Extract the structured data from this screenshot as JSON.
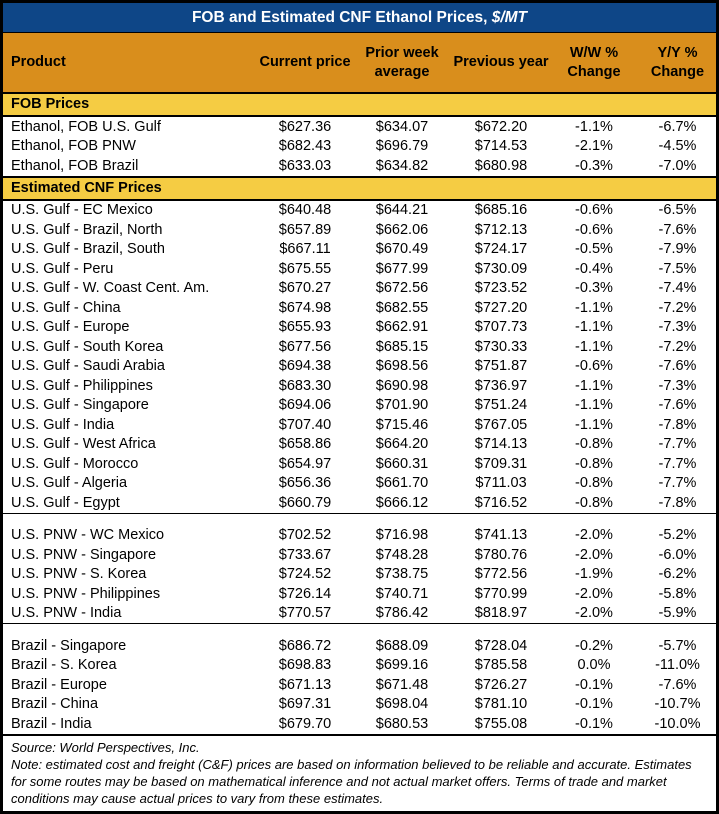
{
  "title": {
    "main": "FOB and Estimated CNF Ethanol Prices, ",
    "unit": "$/MT"
  },
  "columns": [
    "Product",
    "Current price",
    "Prior week average",
    "Previous year",
    "W/W % Change",
    "Y/Y % Change"
  ],
  "colors": {
    "title_bg": "#0E4687",
    "title_text": "#FFFFFF",
    "header_bg": "#D98E1C",
    "section_band_bg": "#F5CC43",
    "border": "#000000",
    "body_text": "#000000"
  },
  "sections": [
    {
      "type": "band",
      "label": "FOB Prices"
    },
    {
      "type": "rows",
      "name": "fob-prices",
      "rows": [
        [
          "Ethanol, FOB U.S. Gulf",
          "$627.36",
          "$634.07",
          "$672.20",
          "-1.1%",
          "-6.7%"
        ],
        [
          "Ethanol, FOB PNW",
          "$682.43",
          "$696.79",
          "$714.53",
          "-2.1%",
          "-4.5%"
        ],
        [
          "Ethanol, FOB Brazil",
          "$633.03",
          "$634.82",
          "$680.98",
          "-0.3%",
          "-7.0%"
        ]
      ]
    },
    {
      "type": "band",
      "label": "Estimated CNF Prices"
    },
    {
      "type": "rows",
      "name": "cnf-us-gulf",
      "rows": [
        [
          "U.S. Gulf - EC Mexico",
          "$640.48",
          "$644.21",
          "$685.16",
          "-0.6%",
          "-6.5%"
        ],
        [
          "U.S. Gulf - Brazil, North",
          "$657.89",
          "$662.06",
          "$712.13",
          "-0.6%",
          "-7.6%"
        ],
        [
          "U.S. Gulf - Brazil, South",
          "$667.11",
          "$670.49",
          "$724.17",
          "-0.5%",
          "-7.9%"
        ],
        [
          "U.S. Gulf - Peru",
          "$675.55",
          "$677.99",
          "$730.09",
          "-0.4%",
          "-7.5%"
        ],
        [
          "U.S. Gulf - W. Coast Cent. Am.",
          "$670.27",
          "$672.56",
          "$723.52",
          "-0.3%",
          "-7.4%"
        ],
        [
          "U.S. Gulf - China",
          "$674.98",
          "$682.55",
          "$727.20",
          "-1.1%",
          "-7.2%"
        ],
        [
          "U.S. Gulf - Europe",
          "$655.93",
          "$662.91",
          "$707.73",
          "-1.1%",
          "-7.3%"
        ],
        [
          "U.S. Gulf - South Korea",
          "$677.56",
          "$685.15",
          "$730.33",
          "-1.1%",
          "-7.2%"
        ],
        [
          "U.S. Gulf - Saudi Arabia",
          "$694.38",
          "$698.56",
          "$751.87",
          "-0.6%",
          "-7.6%"
        ],
        [
          "U.S. Gulf - Philippines",
          "$683.30",
          "$690.98",
          "$736.97",
          "-1.1%",
          "-7.3%"
        ],
        [
          "U.S. Gulf - Singapore",
          "$694.06",
          "$701.90",
          "$751.24",
          "-1.1%",
          "-7.6%"
        ],
        [
          "U.S. Gulf - India",
          "$707.40",
          "$715.46",
          "$767.05",
          "-1.1%",
          "-7.8%"
        ],
        [
          "U.S. Gulf - West Africa",
          "$658.86",
          "$664.20",
          "$714.13",
          "-0.8%",
          "-7.7%"
        ],
        [
          "U.S. Gulf - Morocco",
          "$654.97",
          "$660.31",
          "$709.31",
          "-0.8%",
          "-7.7%"
        ],
        [
          "U.S. Gulf - Algeria",
          "$656.36",
          "$661.70",
          "$711.03",
          "-0.8%",
          "-7.7%"
        ],
        [
          "U.S. Gulf - Egypt",
          "$660.79",
          "$666.12",
          "$716.52",
          "-0.8%",
          "-7.8%"
        ]
      ]
    },
    {
      "type": "gap"
    },
    {
      "type": "rows",
      "name": "cnf-us-pnw",
      "rows": [
        [
          "U.S. PNW - WC Mexico",
          "$702.52",
          "$716.98",
          "$741.13",
          "-2.0%",
          "-5.2%"
        ],
        [
          "U.S. PNW - Singapore",
          "$733.67",
          "$748.28",
          "$780.76",
          "-2.0%",
          "-6.0%"
        ],
        [
          "U.S. PNW - S. Korea",
          "$724.52",
          "$738.75",
          "$772.56",
          "-1.9%",
          "-6.2%"
        ],
        [
          "U.S. PNW - Philippines",
          "$726.14",
          "$740.71",
          "$770.99",
          "-2.0%",
          "-5.8%"
        ],
        [
          "U.S. PNW - India",
          "$770.57",
          "$786.42",
          "$818.97",
          "-2.0%",
          "-5.9%"
        ]
      ]
    },
    {
      "type": "gap"
    },
    {
      "type": "rows",
      "name": "cnf-brazil",
      "rows": [
        [
          "Brazil - Singapore",
          "$686.72",
          "$688.09",
          "$728.04",
          "-0.2%",
          "-5.7%"
        ],
        [
          "Brazil - S. Korea",
          "$698.83",
          "$699.16",
          "$785.58",
          "0.0%",
          "-11.0%"
        ],
        [
          "Brazil - Europe",
          "$671.13",
          "$671.48",
          "$726.27",
          "-0.1%",
          "-7.6%"
        ],
        [
          "Brazil - China",
          "$697.31",
          "$698.04",
          "$781.10",
          "-0.1%",
          "-10.7%"
        ],
        [
          "Brazil - India",
          "$679.70",
          "$680.53",
          "$755.08",
          "-0.1%",
          "-10.0%"
        ]
      ]
    }
  ],
  "footer": {
    "source": "Source: World Perspectives, Inc.",
    "note": "Note: estimated cost and freight (C&F) prices are based on information believed to be reliable and accurate. Estimates for some routes may be based on mathematical inference and not actual market offers. Terms of trade and market conditions may cause actual prices to vary from these estimates."
  }
}
